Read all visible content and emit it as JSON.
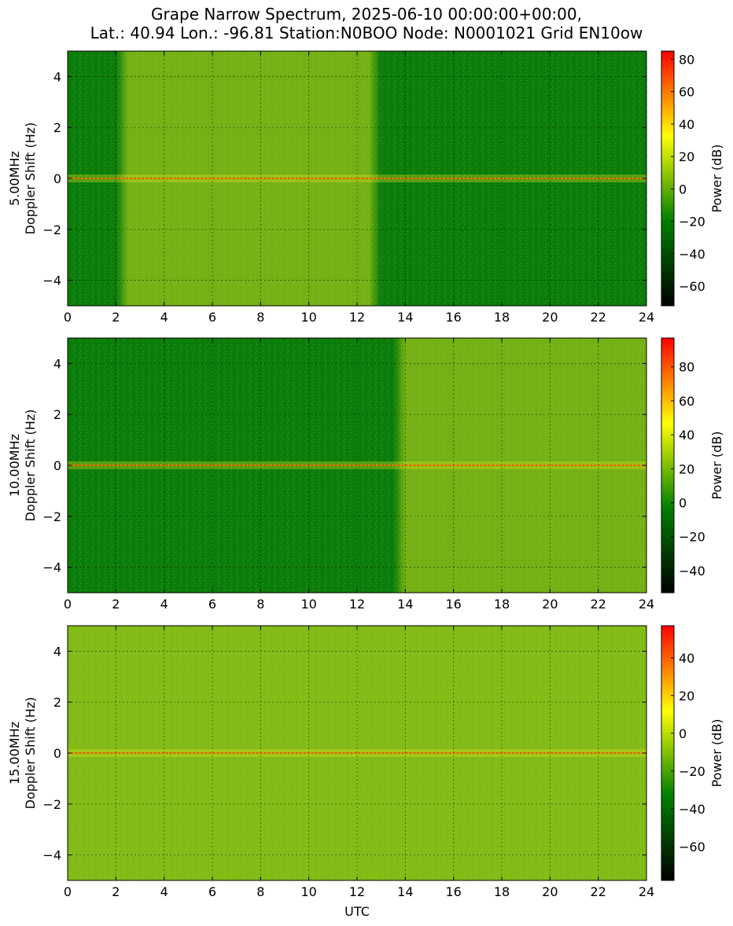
{
  "figure": {
    "title_line1": "Grape Narrow Spectrum, 2025-06-10 00:00:00+00:00,",
    "title_line2": "Lat.: 40.94 Lon.: -96.81 Station:N0BOO Node: N0001021 Grid EN10ow",
    "xlabel": "UTC",
    "colorbar_label": "Power (dB)"
  },
  "colors": {
    "colormap": [
      "#000000",
      "#008000",
      "#ffff00",
      "#ff0000"
    ],
    "background": "#ffffff"
  },
  "chart_data": [
    {
      "type": "heatmap",
      "panel": "5.00MHz",
      "ylabel_line1": "5.00MHz",
      "ylabel_line2": "Doppler Shift (Hz)",
      "x_ticks": [
        0,
        2,
        4,
        6,
        8,
        10,
        12,
        14,
        16,
        18,
        20,
        22,
        24
      ],
      "xlim": [
        0,
        24
      ],
      "y_ticks": [
        -4,
        -2,
        0,
        2,
        4
      ],
      "ylim": [
        -5,
        5
      ],
      "grid": true,
      "colorbar_ticks": [
        -60,
        -40,
        -20,
        0,
        20,
        40,
        60,
        80
      ],
      "colorbar_range": [
        -72,
        85
      ],
      "carrier_doppler_hz": 0,
      "strong_band_utc": [
        2.5,
        12.5
      ]
    },
    {
      "type": "heatmap",
      "panel": "10.00MHz",
      "ylabel_line1": "10.00MHz",
      "ylabel_line2": "Doppler Shift (Hz)",
      "x_ticks": [
        0,
        2,
        4,
        6,
        8,
        10,
        12,
        14,
        16,
        18,
        20,
        22,
        24
      ],
      "xlim": [
        0,
        24
      ],
      "y_ticks": [
        -4,
        -2,
        0,
        2,
        4
      ],
      "ylim": [
        -5,
        5
      ],
      "grid": true,
      "colorbar_ticks": [
        -40,
        -20,
        0,
        20,
        40,
        60,
        80
      ],
      "colorbar_range": [
        -53,
        97
      ],
      "carrier_doppler_hz": 0,
      "strong_band_utc": [
        14,
        24
      ]
    },
    {
      "type": "heatmap",
      "panel": "15.00MHz",
      "ylabel_line1": "15.00MHz",
      "ylabel_line2": "Doppler Shift (Hz)",
      "x_ticks": [
        0,
        2,
        4,
        6,
        8,
        10,
        12,
        14,
        16,
        18,
        20,
        22,
        24
      ],
      "xlim": [
        0,
        24
      ],
      "y_ticks": [
        -4,
        -2,
        0,
        2,
        4
      ],
      "ylim": [
        -5,
        5
      ],
      "grid": true,
      "colorbar_ticks": [
        -60,
        -40,
        -20,
        0,
        20,
        40
      ],
      "colorbar_range": [
        -78,
        57
      ],
      "carrier_doppler_hz": 0,
      "strong_band_utc": [
        0,
        24
      ]
    }
  ]
}
